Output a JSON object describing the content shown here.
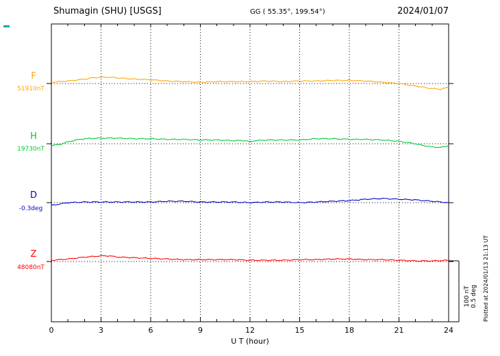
{
  "header": {
    "station": "Shumagin (SHU)  [USGS]",
    "coords": "GG ( 55.35°, 199.54°)",
    "date": "2024/01/07"
  },
  "x_axis": {
    "label": "U T (hour)",
    "ticks": [
      "0",
      "3",
      "6",
      "9",
      "12",
      "15",
      "18",
      "21",
      "24"
    ]
  },
  "scale_bar": {
    "line1": "100 nT",
    "line2": "0.5 deg"
  },
  "footer": {
    "plotted_note": "Plotted at 2024/01/13 21:13 UT"
  },
  "chart_data": {
    "type": "line",
    "title": "Shumagin (SHU) [USGS] magnetogram",
    "date": "2024/01/07",
    "xlabel": "U T (hour)",
    "x_range": [
      0,
      24
    ],
    "x_ticks": [
      0,
      3,
      6,
      9,
      12,
      15,
      18,
      21,
      24
    ],
    "grid": "dotted vertical every 3 h, dotted horizontal baseline per trace",
    "series": [
      {
        "id": "F",
        "label": "F",
        "baseline_label": "51910nT",
        "baseline_value": 51910,
        "unit": "nT",
        "color": "#FFA500",
        "offsets_from_baseline": [
          [
            0,
            2
          ],
          [
            1,
            4
          ],
          [
            2,
            7
          ],
          [
            2.5,
            9
          ],
          [
            3,
            10
          ],
          [
            3.5,
            10
          ],
          [
            4,
            9
          ],
          [
            5,
            7
          ],
          [
            6,
            6
          ],
          [
            7,
            4
          ],
          [
            8,
            3
          ],
          [
            9,
            2
          ],
          [
            10,
            3
          ],
          [
            11,
            3
          ],
          [
            12,
            3
          ],
          [
            13,
            4
          ],
          [
            14,
            3
          ],
          [
            15,
            4
          ],
          [
            16,
            4
          ],
          [
            17,
            5
          ],
          [
            18,
            5
          ],
          [
            19,
            4
          ],
          [
            20,
            2
          ],
          [
            21,
            0
          ],
          [
            22,
            -4
          ],
          [
            23,
            -8
          ],
          [
            23.5,
            -9
          ],
          [
            24,
            -6
          ]
        ]
      },
      {
        "id": "H",
        "label": "H",
        "baseline_label": "19730nT",
        "baseline_value": 19730,
        "unit": "nT",
        "color": "#00C832",
        "offsets_from_baseline": [
          [
            0,
            -3
          ],
          [
            0.5,
            -1
          ],
          [
            1,
            3
          ],
          [
            1.5,
            6
          ],
          [
            2,
            8
          ],
          [
            3,
            9
          ],
          [
            4,
            9
          ],
          [
            5,
            8
          ],
          [
            6,
            8
          ],
          [
            7,
            7
          ],
          [
            8,
            7
          ],
          [
            9,
            6
          ],
          [
            10,
            6
          ],
          [
            11,
            5
          ],
          [
            11.7,
            5
          ],
          [
            12,
            3
          ],
          [
            12.3,
            5
          ],
          [
            13,
            6
          ],
          [
            14,
            6
          ],
          [
            15,
            6
          ],
          [
            16,
            8
          ],
          [
            17,
            8
          ],
          [
            18,
            7
          ],
          [
            19,
            7
          ],
          [
            20,
            6
          ],
          [
            21,
            4
          ],
          [
            22,
            0
          ],
          [
            22.5,
            -3
          ],
          [
            23,
            -5
          ],
          [
            23.5,
            -6
          ],
          [
            24,
            -3
          ]
        ]
      },
      {
        "id": "D",
        "label": "D",
        "baseline_label": "-0.3deg",
        "baseline_value": -0.3,
        "unit": "deg",
        "color": "#0000CC",
        "offsets_from_baseline": [
          [
            0,
            -0.022
          ],
          [
            0.5,
            -0.011
          ],
          [
            1,
            0
          ],
          [
            2,
            0.005
          ],
          [
            3,
            0.005
          ],
          [
            4,
            0.005
          ],
          [
            5,
            0.005
          ],
          [
            6,
            0.005
          ],
          [
            7,
            0.011
          ],
          [
            8,
            0.011
          ],
          [
            9,
            0.005
          ],
          [
            10,
            0.005
          ],
          [
            11,
            0.005
          ],
          [
            12,
            0
          ],
          [
            13,
            0.005
          ],
          [
            14,
            0.005
          ],
          [
            15,
            0
          ],
          [
            16,
            0.005
          ],
          [
            17,
            0.011
          ],
          [
            18,
            0.016
          ],
          [
            19,
            0.027
          ],
          [
            20,
            0.033
          ],
          [
            21,
            0.027
          ],
          [
            22,
            0.022
          ],
          [
            23,
            0.011
          ],
          [
            24,
            0
          ]
        ]
      },
      {
        "id": "Z",
        "label": "Z",
        "baseline_label": "48080nT",
        "baseline_value": 48080,
        "unit": "nT",
        "color": "#FF0000",
        "offsets_from_baseline": [
          [
            0,
            2
          ],
          [
            1,
            4
          ],
          [
            2,
            7
          ],
          [
            3,
            9
          ],
          [
            3.5,
            9
          ],
          [
            4,
            7
          ],
          [
            5,
            6
          ],
          [
            6,
            5
          ],
          [
            7,
            4
          ],
          [
            8,
            3
          ],
          [
            9,
            3
          ],
          [
            10,
            3
          ],
          [
            11,
            3
          ],
          [
            12,
            2
          ],
          [
            13,
            2
          ],
          [
            14,
            2
          ],
          [
            15,
            3
          ],
          [
            16,
            3
          ],
          [
            17,
            4
          ],
          [
            18,
            4
          ],
          [
            19,
            3
          ],
          [
            20,
            3
          ],
          [
            21,
            2
          ],
          [
            22,
            1
          ],
          [
            23,
            1
          ],
          [
            24,
            2
          ]
        ]
      }
    ],
    "scale_bar_labels": [
      "100 nT",
      "0.5 deg"
    ],
    "plotted_at": "Plotted at 2024/01/13 21:13 UT"
  }
}
